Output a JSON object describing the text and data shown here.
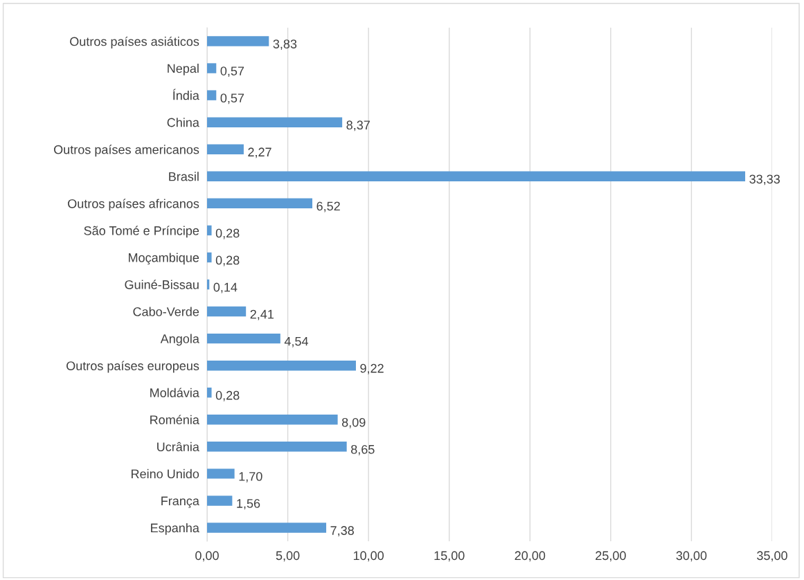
{
  "chart_data": {
    "type": "bar",
    "orientation": "horizontal",
    "categories": [
      "Outros países asiáticos",
      "Nepal",
      "Índia",
      "China",
      "Outros países americanos",
      "Brasil",
      "Outros países africanos",
      "São Tomé e Príncipe",
      "Moçambique",
      "Guiné-Bissau",
      "Cabo-Verde",
      "Angola",
      "Outros países europeus",
      "Moldávia",
      "Roménia",
      "Ucrânia",
      "Reino Unido",
      "França",
      "Espanha"
    ],
    "values": [
      3.83,
      0.57,
      0.57,
      8.37,
      2.27,
      33.33,
      6.52,
      0.28,
      0.28,
      0.14,
      2.41,
      4.54,
      9.22,
      0.28,
      8.09,
      8.65,
      1.7,
      1.56,
      7.38
    ],
    "value_labels": [
      "3,83",
      "0,57",
      "0,57",
      "8,37",
      "2,27",
      "33,33",
      "6,52",
      "0,28",
      "0,28",
      "0,14",
      "2,41",
      "4,54",
      "9,22",
      "0,28",
      "8,09",
      "8,65",
      "1,70",
      "1,56",
      "7,38"
    ],
    "color": "#5b9bd5",
    "xlim": [
      0,
      35
    ],
    "xticks": [
      {
        "value": 0,
        "label": "0,00"
      },
      {
        "value": 5,
        "label": "5,00"
      },
      {
        "value": 10,
        "label": "10,00"
      },
      {
        "value": 15,
        "label": "15,00"
      },
      {
        "value": 20,
        "label": "20,00"
      },
      {
        "value": 25,
        "label": "25,00"
      },
      {
        "value": 30,
        "label": "30,00"
      },
      {
        "value": 35,
        "label": "35,00"
      }
    ],
    "grid": "x",
    "legend": false
  }
}
